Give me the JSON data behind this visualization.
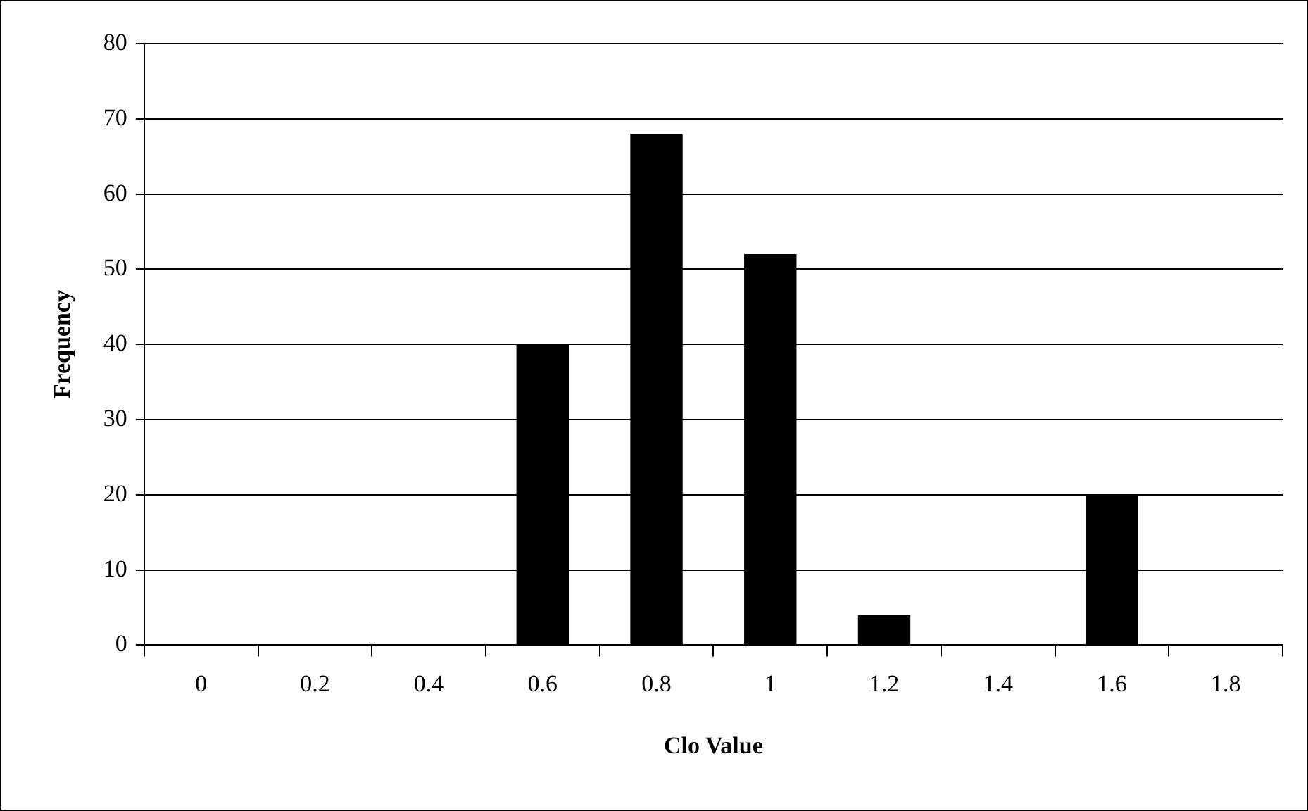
{
  "chart_data": {
    "type": "bar",
    "xlabel": "Clo Value",
    "ylabel": "Frequency",
    "categories": [
      "0",
      "0.2",
      "0.4",
      "0.6",
      "0.8",
      "1",
      "1.2",
      "1.4",
      "1.6",
      "1.8"
    ],
    "values": [
      0,
      0,
      0,
      40,
      68,
      52,
      4,
      0,
      20,
      0
    ],
    "color": "#000000",
    "ylim": [
      0,
      80
    ],
    "yticks": [
      0,
      10,
      20,
      30,
      40,
      50,
      60,
      70,
      80
    ],
    "grid": "y",
    "legend": false
  }
}
